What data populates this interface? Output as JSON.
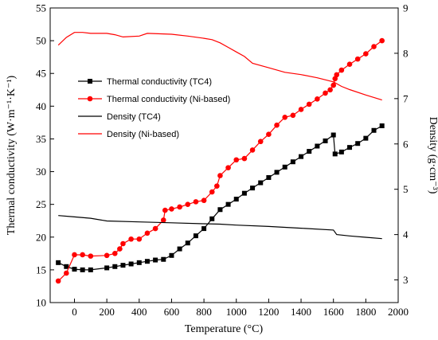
{
  "chart_data": {
    "type": "line",
    "xlabel": "Temperature (°C)",
    "ylabel_left": "Thermal conductivity (W·m⁻¹·K⁻¹)",
    "ylabel_right": "Density (g·cm⁻³)",
    "xlim": [
      -150,
      2000
    ],
    "ylim_left": [
      10,
      55
    ],
    "ylim_right": [
      2.5,
      9
    ],
    "x_ticks": [
      0,
      200,
      400,
      600,
      800,
      1000,
      1200,
      1400,
      1600,
      1800,
      2000
    ],
    "y_left_ticks": [
      10,
      15,
      20,
      25,
      30,
      35,
      40,
      45,
      50,
      55
    ],
    "y_right_ticks": [
      3,
      4,
      5,
      6,
      7,
      8,
      9
    ],
    "grid": false,
    "legend_position": "left",
    "series": [
      {
        "name": "Thermal conductivity (TC4)",
        "axis": "left",
        "color": "#000000",
        "marker": "square",
        "points": [
          [
            -100,
            16.1
          ],
          [
            -50,
            15.5
          ],
          [
            0,
            15.1
          ],
          [
            50,
            15.0
          ],
          [
            100,
            15.0
          ],
          [
            200,
            15.3
          ],
          [
            250,
            15.5
          ],
          [
            300,
            15.7
          ],
          [
            350,
            15.9
          ],
          [
            400,
            16.1
          ],
          [
            450,
            16.3
          ],
          [
            500,
            16.5
          ],
          [
            550,
            16.6
          ],
          [
            600,
            17.2
          ],
          [
            650,
            18.2
          ],
          [
            700,
            19.1
          ],
          [
            750,
            20.2
          ],
          [
            800,
            21.3
          ],
          [
            850,
            22.8
          ],
          [
            900,
            24.2
          ],
          [
            950,
            25.0
          ],
          [
            1000,
            25.8
          ],
          [
            1050,
            26.7
          ],
          [
            1100,
            27.5
          ],
          [
            1150,
            28.3
          ],
          [
            1200,
            29.1
          ],
          [
            1250,
            29.9
          ],
          [
            1300,
            30.7
          ],
          [
            1350,
            31.5
          ],
          [
            1400,
            32.3
          ],
          [
            1450,
            33.1
          ],
          [
            1500,
            33.9
          ],
          [
            1550,
            34.7
          ],
          [
            1600,
            35.6
          ],
          [
            1610,
            32.7
          ],
          [
            1650,
            33.0
          ],
          [
            1700,
            33.7
          ],
          [
            1750,
            34.3
          ],
          [
            1800,
            35.1
          ],
          [
            1850,
            36.3
          ],
          [
            1900,
            37.0
          ]
        ]
      },
      {
        "name": "Thermal conductivity (Ni-based)",
        "axis": "left",
        "color": "#ff0000",
        "marker": "circle",
        "points": [
          [
            -100,
            13.3
          ],
          [
            -50,
            14.5
          ],
          [
            0,
            17.3
          ],
          [
            50,
            17.3
          ],
          [
            100,
            17.1
          ],
          [
            200,
            17.2
          ],
          [
            250,
            17.5
          ],
          [
            280,
            18.2
          ],
          [
            300,
            19.0
          ],
          [
            350,
            19.7
          ],
          [
            400,
            19.7
          ],
          [
            450,
            20.6
          ],
          [
            500,
            21.3
          ],
          [
            550,
            22.6
          ],
          [
            560,
            24.1
          ],
          [
            600,
            24.3
          ],
          [
            650,
            24.6
          ],
          [
            700,
            25.0
          ],
          [
            750,
            25.4
          ],
          [
            800,
            25.6
          ],
          [
            850,
            26.9
          ],
          [
            880,
            27.8
          ],
          [
            900,
            29.4
          ],
          [
            950,
            30.6
          ],
          [
            1000,
            31.8
          ],
          [
            1050,
            32.0
          ],
          [
            1100,
            33.3
          ],
          [
            1150,
            34.6
          ],
          [
            1200,
            35.7
          ],
          [
            1250,
            37.1
          ],
          [
            1300,
            38.3
          ],
          [
            1350,
            38.6
          ],
          [
            1400,
            39.5
          ],
          [
            1450,
            40.3
          ],
          [
            1500,
            41.1
          ],
          [
            1550,
            42.0
          ],
          [
            1580,
            42.5
          ],
          [
            1600,
            43.2
          ],
          [
            1610,
            44.2
          ],
          [
            1620,
            44.8
          ],
          [
            1650,
            45.5
          ],
          [
            1700,
            46.4
          ],
          [
            1750,
            47.2
          ],
          [
            1800,
            48.0
          ],
          [
            1850,
            49.1
          ],
          [
            1900,
            50.0
          ]
        ]
      },
      {
        "name": "Density (TC4)",
        "axis": "right",
        "color": "#000000",
        "marker": "none",
        "points": [
          [
            -100,
            4.42
          ],
          [
            0,
            4.39
          ],
          [
            100,
            4.36
          ],
          [
            200,
            4.3
          ],
          [
            400,
            4.28
          ],
          [
            600,
            4.26
          ],
          [
            800,
            4.24
          ],
          [
            900,
            4.23
          ],
          [
            1000,
            4.21
          ],
          [
            1200,
            4.18
          ],
          [
            1400,
            4.14
          ],
          [
            1600,
            4.1
          ],
          [
            1620,
            4.0
          ],
          [
            1700,
            3.97
          ],
          [
            1800,
            3.94
          ],
          [
            1900,
            3.91
          ]
        ]
      },
      {
        "name": "Density (Ni-based)",
        "axis": "right",
        "color": "#ff0000",
        "marker": "none",
        "points": [
          [
            -100,
            8.18
          ],
          [
            -50,
            8.35
          ],
          [
            0,
            8.46
          ],
          [
            50,
            8.46
          ],
          [
            100,
            8.44
          ],
          [
            200,
            8.44
          ],
          [
            250,
            8.41
          ],
          [
            300,
            8.36
          ],
          [
            400,
            8.38
          ],
          [
            450,
            8.44
          ],
          [
            600,
            8.42
          ],
          [
            700,
            8.38
          ],
          [
            800,
            8.33
          ],
          [
            850,
            8.3
          ],
          [
            900,
            8.23
          ],
          [
            950,
            8.13
          ],
          [
            1000,
            8.03
          ],
          [
            1050,
            7.93
          ],
          [
            1100,
            7.78
          ],
          [
            1200,
            7.68
          ],
          [
            1300,
            7.58
          ],
          [
            1400,
            7.53
          ],
          [
            1500,
            7.46
          ],
          [
            1600,
            7.37
          ],
          [
            1650,
            7.27
          ],
          [
            1700,
            7.2
          ],
          [
            1800,
            7.08
          ],
          [
            1900,
            6.97
          ]
        ]
      }
    ]
  }
}
